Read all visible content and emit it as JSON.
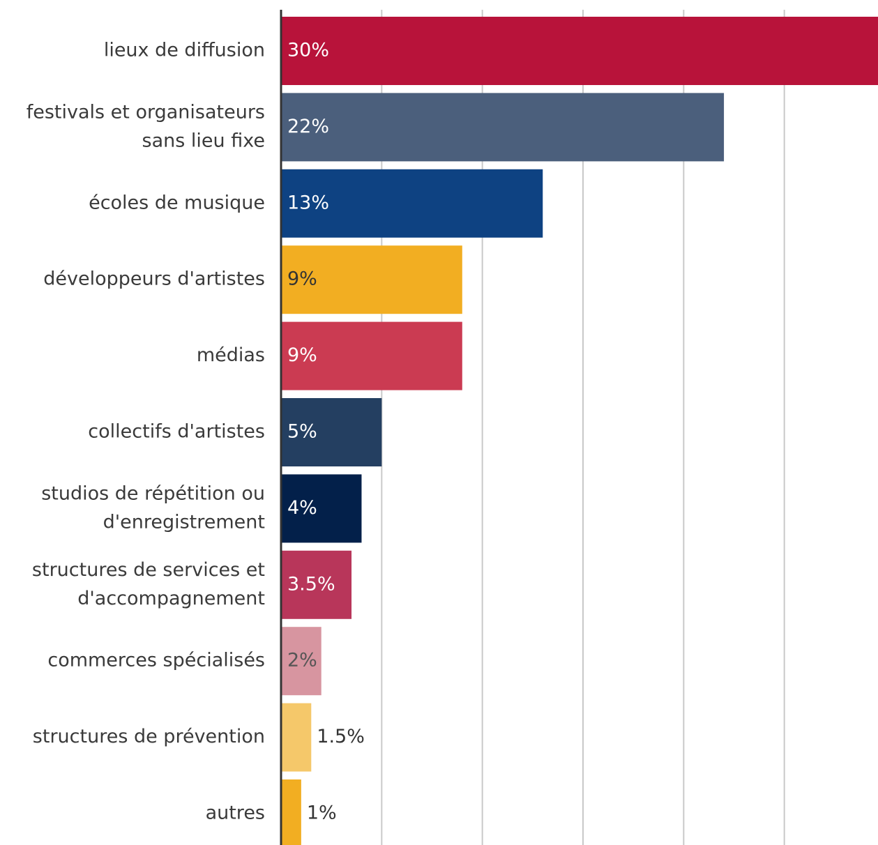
{
  "chart_data": {
    "type": "bar",
    "orientation": "horizontal",
    "categories": [
      "lieux de diffusion",
      "festivals et organisateurs sans lieu fixe",
      "écoles de musique",
      "développeurs d'artistes",
      "médias",
      "collectifs d'artistes",
      "studios de répétition ou d'enregistrement",
      "structures de services et d'accompagnement",
      "commerces spécialisés",
      "structures de prévention",
      "autres"
    ],
    "category_lines": [
      [
        "lieux de diffusion"
      ],
      [
        "festivals et organisateurs",
        "sans lieu fixe"
      ],
      [
        "écoles de musique"
      ],
      [
        "développeurs d'artistes"
      ],
      [
        "médias"
      ],
      [
        "collectifs d'artistes"
      ],
      [
        "studios de répétition ou",
        "d'enregistrement"
      ],
      [
        "structures de services et",
        "d'accompagnement"
      ],
      [
        "commerces spécialisés"
      ],
      [
        "structures de prévention"
      ],
      [
        "autres"
      ]
    ],
    "values": [
      30,
      22,
      13,
      9,
      9,
      5,
      4,
      3.5,
      2,
      1.5,
      1
    ],
    "value_labels": [
      "30%",
      "22%",
      "13%",
      "9%",
      "9%",
      "5%",
      "4%",
      "3.5%",
      "2%",
      "1.5%",
      "1%"
    ],
    "colors": [
      "#b8133a",
      "#4b5f7c",
      "#0e4282",
      "#f2ae22",
      "#cb3b52",
      "#243f61",
      "#03204a",
      "#b8365a",
      "#d795a0",
      "#f5c86a",
      "#f2ae22"
    ],
    "label_colors": [
      "#ffffff",
      "#ffffff",
      "#ffffff",
      "#333333",
      "#ffffff",
      "#ffffff",
      "#ffffff",
      "#ffffff",
      "#555555",
      "#333333",
      "#333333"
    ],
    "label_outside": [
      false,
      false,
      false,
      false,
      false,
      false,
      false,
      false,
      false,
      true,
      true
    ],
    "xlim": [
      0,
      30
    ],
    "grid_step": 5,
    "grid": true,
    "title": "",
    "xlabel": "",
    "ylabel": ""
  }
}
